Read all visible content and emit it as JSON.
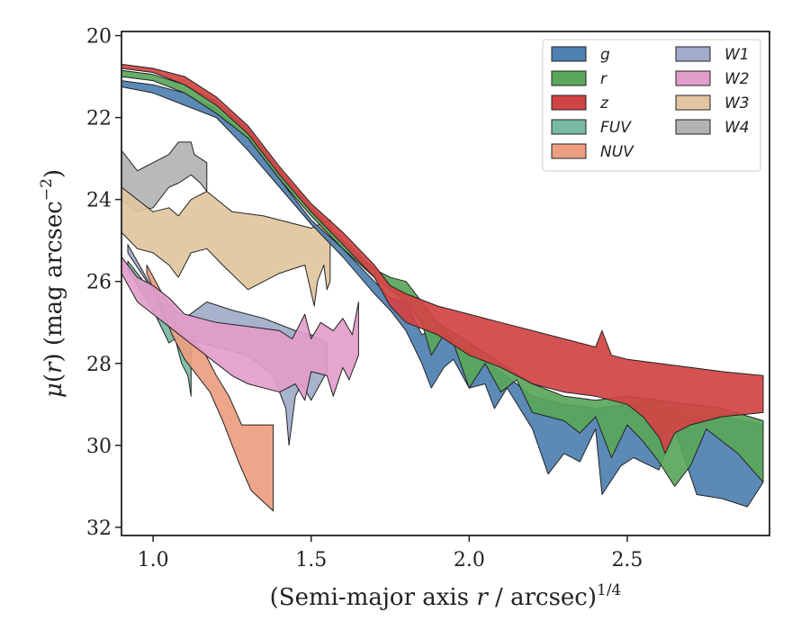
{
  "chart_data": {
    "type": "area",
    "xlabel": "(Semi-major axis r / arcsec)^1/4",
    "xlabel_parts": {
      "main": "(Semi-major axis ",
      "var": "r",
      "tail": " / arcsec)",
      "sup": "1/4"
    },
    "ylabel": "μ(r) (mag arcsec^−2)",
    "ylabel_parts": {
      "mu": "μ",
      "open": "(",
      "var": "r",
      "close": ")",
      "unit": " (mag arcsec",
      "sup": "−2",
      "end": ")"
    },
    "xlim": [
      0.9,
      2.95
    ],
    "ylim": [
      32.2,
      19.9
    ],
    "y_inverted": true,
    "x_ticks": [
      1.0,
      1.5,
      2.0,
      2.5
    ],
    "x_tick_labels": [
      "1.0",
      "1.5",
      "2.0",
      "2.5"
    ],
    "y_ticks": [
      20,
      22,
      24,
      26,
      28,
      30,
      32
    ],
    "y_tick_labels": [
      "20",
      "22",
      "24",
      "26",
      "28",
      "30",
      "32"
    ],
    "grid": false,
    "legend_position": "top-right",
    "legend_columns": 2,
    "series": [
      {
        "name": "W4",
        "color": "#b3b3b3",
        "upper": [
          [
            0.9,
            22.8
          ],
          [
            0.95,
            23.3
          ],
          [
            1.0,
            23.1
          ],
          [
            1.05,
            22.9
          ],
          [
            1.08,
            22.6
          ],
          [
            1.12,
            22.6
          ],
          [
            1.13,
            22.9
          ],
          [
            1.17,
            23.1
          ]
        ],
        "lower": [
          [
            0.9,
            24.0
          ],
          [
            0.95,
            24.3
          ],
          [
            1.0,
            24.2
          ],
          [
            1.05,
            23.7
          ],
          [
            1.08,
            23.6
          ],
          [
            1.12,
            23.4
          ],
          [
            1.15,
            23.6
          ],
          [
            1.17,
            23.8
          ]
        ]
      },
      {
        "name": "W3",
        "color": "#e0c5a0",
        "upper": [
          [
            0.9,
            23.7
          ],
          [
            1.0,
            24.3
          ],
          [
            1.05,
            24.2
          ],
          [
            1.08,
            24.4
          ],
          [
            1.12,
            24.0
          ],
          [
            1.17,
            23.8
          ],
          [
            1.25,
            24.3
          ],
          [
            1.35,
            24.4
          ],
          [
            1.5,
            24.7
          ],
          [
            1.56,
            24.5
          ]
        ],
        "lower": [
          [
            0.9,
            24.8
          ],
          [
            0.95,
            25.2
          ],
          [
            1.0,
            25.3
          ],
          [
            1.05,
            25.6
          ],
          [
            1.08,
            25.9
          ],
          [
            1.12,
            25.3
          ],
          [
            1.17,
            25.2
          ],
          [
            1.22,
            25.6
          ],
          [
            1.3,
            26.2
          ],
          [
            1.4,
            25.8
          ],
          [
            1.48,
            25.6
          ],
          [
            1.51,
            26.6
          ],
          [
            1.52,
            26.0
          ],
          [
            1.54,
            25.6
          ],
          [
            1.55,
            26.2
          ],
          [
            1.56,
            26.0
          ]
        ]
      },
      {
        "name": "FUV",
        "color": "#77b9a3",
        "upper": [
          [
            0.92,
            25.5
          ],
          [
            1.0,
            26.3
          ],
          [
            1.04,
            26.9
          ],
          [
            1.08,
            27.3
          ],
          [
            1.12,
            27.2
          ]
        ],
        "lower": [
          [
            0.92,
            25.7
          ],
          [
            1.0,
            26.7
          ],
          [
            1.05,
            27.5
          ],
          [
            1.07,
            27.4
          ],
          [
            1.09,
            28.0
          ],
          [
            1.11,
            28.3
          ],
          [
            1.12,
            28.8
          ]
        ]
      },
      {
        "name": "NUV",
        "color": "#ec9e80",
        "upper": [
          [
            0.98,
            25.6
          ],
          [
            1.05,
            26.6
          ],
          [
            1.1,
            27.3
          ],
          [
            1.16,
            27.7
          ],
          [
            1.2,
            28.3
          ],
          [
            1.24,
            28.8
          ],
          [
            1.28,
            29.5
          ],
          [
            1.38,
            29.5
          ]
        ],
        "lower": [
          [
            0.98,
            25.8
          ],
          [
            1.03,
            26.7
          ],
          [
            1.06,
            27.3
          ],
          [
            1.1,
            27.9
          ],
          [
            1.14,
            28.3
          ],
          [
            1.18,
            28.7
          ],
          [
            1.22,
            29.4
          ],
          [
            1.27,
            30.4
          ],
          [
            1.31,
            31.1
          ],
          [
            1.38,
            31.6
          ]
        ]
      },
      {
        "name": "W1",
        "color": "#a0acc9",
        "upper": [
          [
            0.92,
            25.1
          ],
          [
            1.0,
            26.2
          ],
          [
            1.1,
            26.9
          ],
          [
            1.17,
            26.5
          ],
          [
            1.25,
            26.7
          ],
          [
            1.35,
            26.9
          ],
          [
            1.45,
            27.2
          ],
          [
            1.5,
            27.3
          ],
          [
            1.55,
            27.5
          ]
        ],
        "lower": [
          [
            0.92,
            25.3
          ],
          [
            0.98,
            26.0
          ],
          [
            1.1,
            27.4
          ],
          [
            1.2,
            27.6
          ],
          [
            1.3,
            27.8
          ],
          [
            1.38,
            28.3
          ],
          [
            1.42,
            29.1
          ],
          [
            1.43,
            30.0
          ],
          [
            1.45,
            28.8
          ],
          [
            1.47,
            28.5
          ],
          [
            1.5,
            28.9
          ],
          [
            1.55,
            28.2
          ]
        ]
      },
      {
        "name": "W2",
        "color": "#e29dca",
        "upper": [
          [
            0.9,
            25.4
          ],
          [
            0.95,
            25.9
          ],
          [
            1.0,
            26.1
          ],
          [
            1.05,
            26.4
          ],
          [
            1.1,
            26.8
          ],
          [
            1.15,
            26.9
          ],
          [
            1.2,
            27.0
          ],
          [
            1.3,
            27.1
          ],
          [
            1.4,
            27.2
          ],
          [
            1.44,
            27.4
          ],
          [
            1.48,
            26.8
          ],
          [
            1.5,
            27.4
          ],
          [
            1.53,
            27.0
          ],
          [
            1.57,
            27.2
          ],
          [
            1.6,
            26.9
          ],
          [
            1.63,
            27.3
          ],
          [
            1.65,
            26.5
          ]
        ],
        "lower": [
          [
            0.9,
            25.8
          ],
          [
            0.95,
            26.5
          ],
          [
            1.0,
            26.8
          ],
          [
            1.05,
            27.1
          ],
          [
            1.1,
            27.4
          ],
          [
            1.15,
            27.7
          ],
          [
            1.2,
            28.0
          ],
          [
            1.25,
            28.3
          ],
          [
            1.3,
            28.5
          ],
          [
            1.4,
            28.7
          ],
          [
            1.45,
            28.5
          ],
          [
            1.48,
            28.9
          ],
          [
            1.5,
            28.2
          ],
          [
            1.55,
            28.3
          ],
          [
            1.57,
            28.8
          ],
          [
            1.6,
            28.1
          ],
          [
            1.62,
            28.4
          ],
          [
            1.65,
            27.8
          ]
        ]
      },
      {
        "name": "g",
        "color": "#4e80b1",
        "upper": [
          [
            0.9,
            21.1
          ],
          [
            1.0,
            21.2
          ],
          [
            1.1,
            21.4
          ],
          [
            1.2,
            21.8
          ],
          [
            1.3,
            22.5
          ],
          [
            1.4,
            23.5
          ],
          [
            1.5,
            24.5
          ],
          [
            1.6,
            25.2
          ],
          [
            1.7,
            26.0
          ],
          [
            1.75,
            26.4
          ],
          [
            1.8,
            26.5
          ],
          [
            1.85,
            27.3
          ],
          [
            1.9,
            27.1
          ],
          [
            2.0,
            27.7
          ],
          [
            2.1,
            28.2
          ],
          [
            2.2,
            28.8
          ],
          [
            2.3,
            29.0
          ],
          [
            2.4,
            29.1
          ],
          [
            2.5,
            29.0
          ],
          [
            2.6,
            29.1
          ],
          [
            2.7,
            29.3
          ],
          [
            2.8,
            29.3
          ],
          [
            2.93,
            29.5
          ]
        ],
        "lower": [
          [
            0.9,
            21.25
          ],
          [
            1.0,
            21.4
          ],
          [
            1.1,
            21.7
          ],
          [
            1.2,
            22.0
          ],
          [
            1.3,
            22.8
          ],
          [
            1.4,
            23.7
          ],
          [
            1.5,
            24.6
          ],
          [
            1.6,
            25.4
          ],
          [
            1.7,
            26.3
          ],
          [
            1.75,
            26.7
          ],
          [
            1.8,
            27.2
          ],
          [
            1.85,
            28.0
          ],
          [
            1.88,
            28.6
          ],
          [
            1.92,
            28.1
          ],
          [
            1.95,
            27.9
          ],
          [
            2.0,
            28.6
          ],
          [
            2.05,
            28.5
          ],
          [
            2.08,
            29.1
          ],
          [
            2.12,
            28.6
          ],
          [
            2.2,
            29.6
          ],
          [
            2.25,
            30.7
          ],
          [
            2.3,
            30.2
          ],
          [
            2.35,
            30.4
          ],
          [
            2.4,
            29.6
          ],
          [
            2.42,
            31.2
          ],
          [
            2.48,
            30.5
          ],
          [
            2.52,
            30.3
          ],
          [
            2.6,
            30.6
          ],
          [
            2.65,
            29.6
          ],
          [
            2.72,
            31.2
          ],
          [
            2.8,
            31.3
          ],
          [
            2.88,
            31.5
          ],
          [
            2.93,
            30.9
          ]
        ]
      },
      {
        "name": "r",
        "color": "#5aa65a",
        "upper": [
          [
            0.9,
            20.85
          ],
          [
            1.0,
            20.95
          ],
          [
            1.1,
            21.2
          ],
          [
            1.2,
            21.6
          ],
          [
            1.3,
            22.3
          ],
          [
            1.4,
            23.3
          ],
          [
            1.5,
            24.2
          ],
          [
            1.6,
            25.0
          ],
          [
            1.7,
            25.7
          ],
          [
            1.75,
            25.9
          ],
          [
            1.8,
            26.0
          ],
          [
            1.85,
            26.5
          ],
          [
            1.9,
            27.0
          ],
          [
            2.0,
            27.5
          ],
          [
            2.1,
            28.0
          ],
          [
            2.2,
            28.5
          ],
          [
            2.3,
            28.8
          ],
          [
            2.4,
            28.9
          ],
          [
            2.5,
            28.8
          ],
          [
            2.6,
            28.9
          ],
          [
            2.7,
            29.0
          ],
          [
            2.8,
            29.1
          ],
          [
            2.93,
            29.4
          ]
        ],
        "lower": [
          [
            0.9,
            21.0
          ],
          [
            1.0,
            21.1
          ],
          [
            1.1,
            21.4
          ],
          [
            1.2,
            21.9
          ],
          [
            1.3,
            22.5
          ],
          [
            1.4,
            23.5
          ],
          [
            1.5,
            24.4
          ],
          [
            1.6,
            25.2
          ],
          [
            1.7,
            25.9
          ],
          [
            1.75,
            26.2
          ],
          [
            1.8,
            26.5
          ],
          [
            1.85,
            27.0
          ],
          [
            1.88,
            27.8
          ],
          [
            1.92,
            27.3
          ],
          [
            1.95,
            27.5
          ],
          [
            2.0,
            28.6
          ],
          [
            2.05,
            28.0
          ],
          [
            2.1,
            28.7
          ],
          [
            2.15,
            28.4
          ],
          [
            2.2,
            29.2
          ],
          [
            2.3,
            29.4
          ],
          [
            2.35,
            29.7
          ],
          [
            2.4,
            29.3
          ],
          [
            2.45,
            30.3
          ],
          [
            2.5,
            29.5
          ],
          [
            2.55,
            29.9
          ],
          [
            2.6,
            30.4
          ],
          [
            2.65,
            31.0
          ],
          [
            2.7,
            30.5
          ],
          [
            2.75,
            29.6
          ],
          [
            2.85,
            30.2
          ],
          [
            2.93,
            30.9
          ]
        ]
      },
      {
        "name": "z",
        "color": "#d14343",
        "upper": [
          [
            0.9,
            20.7
          ],
          [
            1.0,
            20.8
          ],
          [
            1.1,
            21.0
          ],
          [
            1.2,
            21.5
          ],
          [
            1.3,
            22.2
          ],
          [
            1.4,
            23.2
          ],
          [
            1.5,
            24.1
          ],
          [
            1.6,
            24.8
          ],
          [
            1.7,
            25.6
          ],
          [
            1.75,
            26.1
          ],
          [
            1.8,
            26.3
          ],
          [
            1.9,
            26.6
          ],
          [
            2.0,
            26.8
          ],
          [
            2.1,
            27.0
          ],
          [
            2.2,
            27.2
          ],
          [
            2.3,
            27.4
          ],
          [
            2.4,
            27.6
          ],
          [
            2.42,
            27.2
          ],
          [
            2.45,
            27.8
          ],
          [
            2.5,
            27.9
          ],
          [
            2.6,
            28.0
          ],
          [
            2.7,
            28.1
          ],
          [
            2.8,
            28.2
          ],
          [
            2.93,
            28.3
          ]
        ],
        "lower": [
          [
            0.9,
            20.8
          ],
          [
            1.0,
            20.9
          ],
          [
            1.1,
            21.2
          ],
          [
            1.2,
            21.7
          ],
          [
            1.3,
            22.4
          ],
          [
            1.4,
            23.4
          ],
          [
            1.5,
            24.3
          ],
          [
            1.6,
            25.1
          ],
          [
            1.7,
            25.9
          ],
          [
            1.75,
            26.6
          ],
          [
            1.8,
            27.0
          ],
          [
            1.9,
            27.3
          ],
          [
            2.0,
            27.8
          ],
          [
            2.1,
            28.1
          ],
          [
            2.2,
            28.5
          ],
          [
            2.3,
            28.7
          ],
          [
            2.4,
            28.8
          ],
          [
            2.45,
            28.9
          ],
          [
            2.5,
            29.0
          ],
          [
            2.55,
            29.3
          ],
          [
            2.6,
            29.8
          ],
          [
            2.62,
            30.2
          ],
          [
            2.65,
            29.7
          ],
          [
            2.7,
            29.5
          ],
          [
            2.8,
            29.3
          ],
          [
            2.93,
            29.2
          ]
        ]
      }
    ],
    "legend": [
      {
        "label": "g",
        "color": "#4e80b1"
      },
      {
        "label": "r",
        "color": "#5aa65a"
      },
      {
        "label": "z",
        "color": "#d14343"
      },
      {
        "label": "FUV",
        "color": "#77b9a3"
      },
      {
        "label": "NUV",
        "color": "#ec9e80"
      },
      {
        "label": "W1",
        "color": "#a0acc9"
      },
      {
        "label": "W2",
        "color": "#e29dca"
      },
      {
        "label": "W3",
        "color": "#e0c5a0"
      },
      {
        "label": "W4",
        "color": "#b3b3b3"
      }
    ]
  }
}
